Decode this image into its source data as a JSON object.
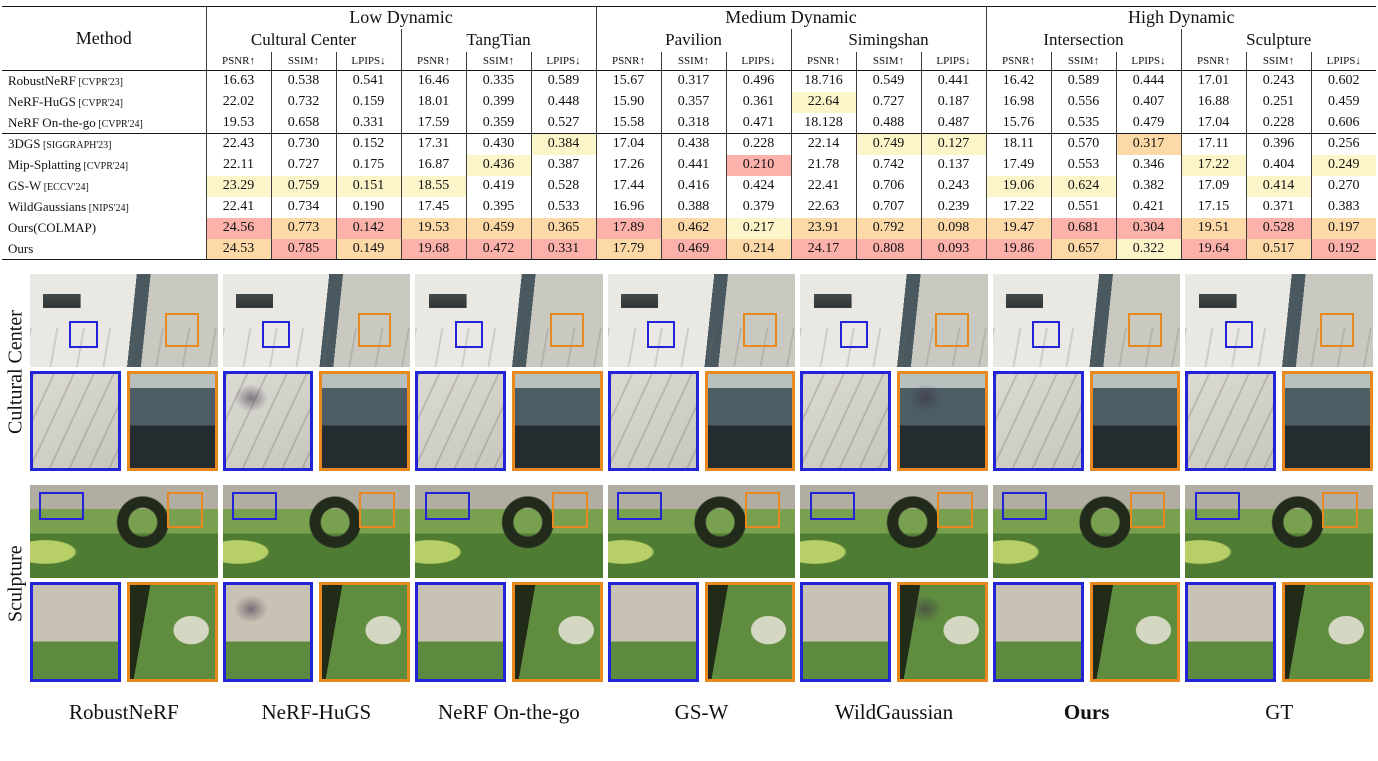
{
  "table": {
    "method_header": "Method",
    "metrics": [
      "PSNR↑",
      "SSIM↑",
      "LPIPS↓"
    ],
    "groups": [
      {
        "label": "Low Dynamic",
        "scenes": [
          "Cultural Center",
          "TangTian"
        ]
      },
      {
        "label": "Medium Dynamic",
        "scenes": [
          "Pavilion",
          "Simingshan"
        ]
      },
      {
        "label": "High Dynamic",
        "scenes": [
          "Intersection",
          "Sculpture"
        ]
      }
    ],
    "highlight_colors": {
      "best": "#fdb1ab",
      "second": "#fcd9a7",
      "third": "#fbf5c9"
    },
    "rows": [
      {
        "method": "RobustNeRF",
        "ref": "[CVPR'23]",
        "cells": [
          [
            "16.63",
            ""
          ],
          [
            "0.538",
            ""
          ],
          [
            "0.541",
            ""
          ],
          [
            "16.46",
            ""
          ],
          [
            "0.335",
            ""
          ],
          [
            "0.589",
            ""
          ],
          [
            "15.67",
            ""
          ],
          [
            "0.317",
            ""
          ],
          [
            "0.496",
            ""
          ],
          [
            "18.716",
            ""
          ],
          [
            "0.549",
            ""
          ],
          [
            "0.441",
            ""
          ],
          [
            "16.42",
            ""
          ],
          [
            "0.589",
            ""
          ],
          [
            "0.444",
            ""
          ],
          [
            "17.01",
            ""
          ],
          [
            "0.243",
            ""
          ],
          [
            "0.602",
            ""
          ]
        ]
      },
      {
        "method": "NeRF-HuGS",
        "ref": "[CVPR'24]",
        "cells": [
          [
            "22.02",
            ""
          ],
          [
            "0.732",
            ""
          ],
          [
            "0.159",
            ""
          ],
          [
            "18.01",
            ""
          ],
          [
            "0.399",
            ""
          ],
          [
            "0.448",
            ""
          ],
          [
            "15.90",
            ""
          ],
          [
            "0.357",
            ""
          ],
          [
            "0.361",
            ""
          ],
          [
            "22.64",
            "y"
          ],
          [
            "0.727",
            ""
          ],
          [
            "0.187",
            ""
          ],
          [
            "16.98",
            ""
          ],
          [
            "0.556",
            ""
          ],
          [
            "0.407",
            ""
          ],
          [
            "16.88",
            ""
          ],
          [
            "0.251",
            ""
          ],
          [
            "0.459",
            ""
          ]
        ]
      },
      {
        "method": "NeRF On-the-go",
        "ref": "[CVPR'24]",
        "cells": [
          [
            "19.53",
            ""
          ],
          [
            "0.658",
            ""
          ],
          [
            "0.331",
            ""
          ],
          [
            "17.59",
            ""
          ],
          [
            "0.359",
            ""
          ],
          [
            "0.527",
            ""
          ],
          [
            "15.58",
            ""
          ],
          [
            "0.318",
            ""
          ],
          [
            "0.471",
            ""
          ],
          [
            "18.128",
            ""
          ],
          [
            "0.488",
            ""
          ],
          [
            "0.487",
            ""
          ],
          [
            "15.76",
            ""
          ],
          [
            "0.535",
            ""
          ],
          [
            "0.479",
            ""
          ],
          [
            "17.04",
            ""
          ],
          [
            "0.228",
            ""
          ],
          [
            "0.606",
            ""
          ]
        ]
      },
      {
        "method": "3DGS",
        "ref": "[SIGGRAPH'23]",
        "cells": [
          [
            "22.43",
            ""
          ],
          [
            "0.730",
            ""
          ],
          [
            "0.152",
            ""
          ],
          [
            "17.31",
            ""
          ],
          [
            "0.430",
            ""
          ],
          [
            "0.384",
            "y"
          ],
          [
            "17.04",
            ""
          ],
          [
            "0.438",
            ""
          ],
          [
            "0.228",
            ""
          ],
          [
            "22.14",
            ""
          ],
          [
            "0.749",
            "y"
          ],
          [
            "0.127",
            "y"
          ],
          [
            "18.11",
            ""
          ],
          [
            "0.570",
            ""
          ],
          [
            "0.317",
            "o"
          ],
          [
            "17.11",
            ""
          ],
          [
            "0.396",
            ""
          ],
          [
            "0.256",
            ""
          ]
        ]
      },
      {
        "method": "Mip-Splatting",
        "ref": "[CVPR'24]",
        "cells": [
          [
            "22.11",
            ""
          ],
          [
            "0.727",
            ""
          ],
          [
            "0.175",
            ""
          ],
          [
            "16.87",
            ""
          ],
          [
            "0.436",
            "y"
          ],
          [
            "0.387",
            ""
          ],
          [
            "17.26",
            ""
          ],
          [
            "0.441",
            ""
          ],
          [
            "0.210",
            "r"
          ],
          [
            "21.78",
            ""
          ],
          [
            "0.742",
            ""
          ],
          [
            "0.137",
            ""
          ],
          [
            "17.49",
            ""
          ],
          [
            "0.553",
            ""
          ],
          [
            "0.346",
            ""
          ],
          [
            "17.22",
            "y"
          ],
          [
            "0.404",
            ""
          ],
          [
            "0.249",
            "y"
          ]
        ]
      },
      {
        "method": "GS-W",
        "ref": "[ECCV'24]",
        "cells": [
          [
            "23.29",
            "y"
          ],
          [
            "0.759",
            "y"
          ],
          [
            "0.151",
            "y"
          ],
          [
            "18.55",
            "y"
          ],
          [
            "0.419",
            ""
          ],
          [
            "0.528",
            ""
          ],
          [
            "17.44",
            ""
          ],
          [
            "0.416",
            ""
          ],
          [
            "0.424",
            ""
          ],
          [
            "22.41",
            ""
          ],
          [
            "0.706",
            ""
          ],
          [
            "0.243",
            ""
          ],
          [
            "19.06",
            "y"
          ],
          [
            "0.624",
            "y"
          ],
          [
            "0.382",
            ""
          ],
          [
            "17.09",
            ""
          ],
          [
            "0.414",
            "y"
          ],
          [
            "0.270",
            ""
          ]
        ]
      },
      {
        "method": "WildGaussians",
        "ref": "[NIPS'24]",
        "cells": [
          [
            "22.41",
            ""
          ],
          [
            "0.734",
            ""
          ],
          [
            "0.190",
            ""
          ],
          [
            "17.45",
            ""
          ],
          [
            "0.395",
            ""
          ],
          [
            "0.533",
            ""
          ],
          [
            "16.96",
            ""
          ],
          [
            "0.388",
            ""
          ],
          [
            "0.379",
            ""
          ],
          [
            "22.63",
            ""
          ],
          [
            "0.707",
            ""
          ],
          [
            "0.239",
            ""
          ],
          [
            "17.22",
            ""
          ],
          [
            "0.551",
            ""
          ],
          [
            "0.421",
            ""
          ],
          [
            "17.15",
            ""
          ],
          [
            "0.371",
            ""
          ],
          [
            "0.383",
            ""
          ]
        ]
      },
      {
        "method": "Ours(COLMAP)",
        "ref": "",
        "cells": [
          [
            "24.56",
            "r"
          ],
          [
            "0.773",
            "o"
          ],
          [
            "0.142",
            "r"
          ],
          [
            "19.53",
            "o"
          ],
          [
            "0.459",
            "o"
          ],
          [
            "0.365",
            "o"
          ],
          [
            "17.89",
            "r"
          ],
          [
            "0.462",
            "o"
          ],
          [
            "0.217",
            "y"
          ],
          [
            "23.91",
            "o"
          ],
          [
            "0.792",
            "o"
          ],
          [
            "0.098",
            "o"
          ],
          [
            "19.47",
            "o"
          ],
          [
            "0.681",
            "r"
          ],
          [
            "0.304",
            "r"
          ],
          [
            "19.51",
            "o"
          ],
          [
            "0.528",
            "r"
          ],
          [
            "0.197",
            "o"
          ]
        ]
      },
      {
        "method": "Ours",
        "ref": "",
        "cells": [
          [
            "24.53",
            "o"
          ],
          [
            "0.785",
            "r"
          ],
          [
            "0.149",
            "o"
          ],
          [
            "19.68",
            "r"
          ],
          [
            "0.472",
            "r"
          ],
          [
            "0.331",
            "r"
          ],
          [
            "17.79",
            "o"
          ],
          [
            "0.469",
            "r"
          ],
          [
            "0.214",
            "o"
          ],
          [
            "24.17",
            "r"
          ],
          [
            "0.808",
            "r"
          ],
          [
            "0.093",
            "r"
          ],
          [
            "19.86",
            "r"
          ],
          [
            "0.657",
            "o"
          ],
          [
            "0.322",
            "y"
          ],
          [
            "19.64",
            "r"
          ],
          [
            "0.517",
            "o"
          ],
          [
            "0.192",
            "r"
          ]
        ]
      }
    ]
  },
  "figure": {
    "scene_groups": [
      {
        "label": "Cultural Center"
      },
      {
        "label": "Sculpture"
      }
    ],
    "method_labels": [
      {
        "label": "RobustNeRF",
        "bold": false
      },
      {
        "label": "NeRF-HuGS",
        "bold": false
      },
      {
        "label": "NeRF On-the-go",
        "bold": false
      },
      {
        "label": "GS-W",
        "bold": false
      },
      {
        "label": "WildGaussian",
        "bold": false
      },
      {
        "label": "Ours",
        "bold": true
      },
      {
        "label": "GT",
        "bold": false
      }
    ],
    "box_colors": {
      "blue": "#2323d8",
      "orange": "#e8891f"
    }
  }
}
